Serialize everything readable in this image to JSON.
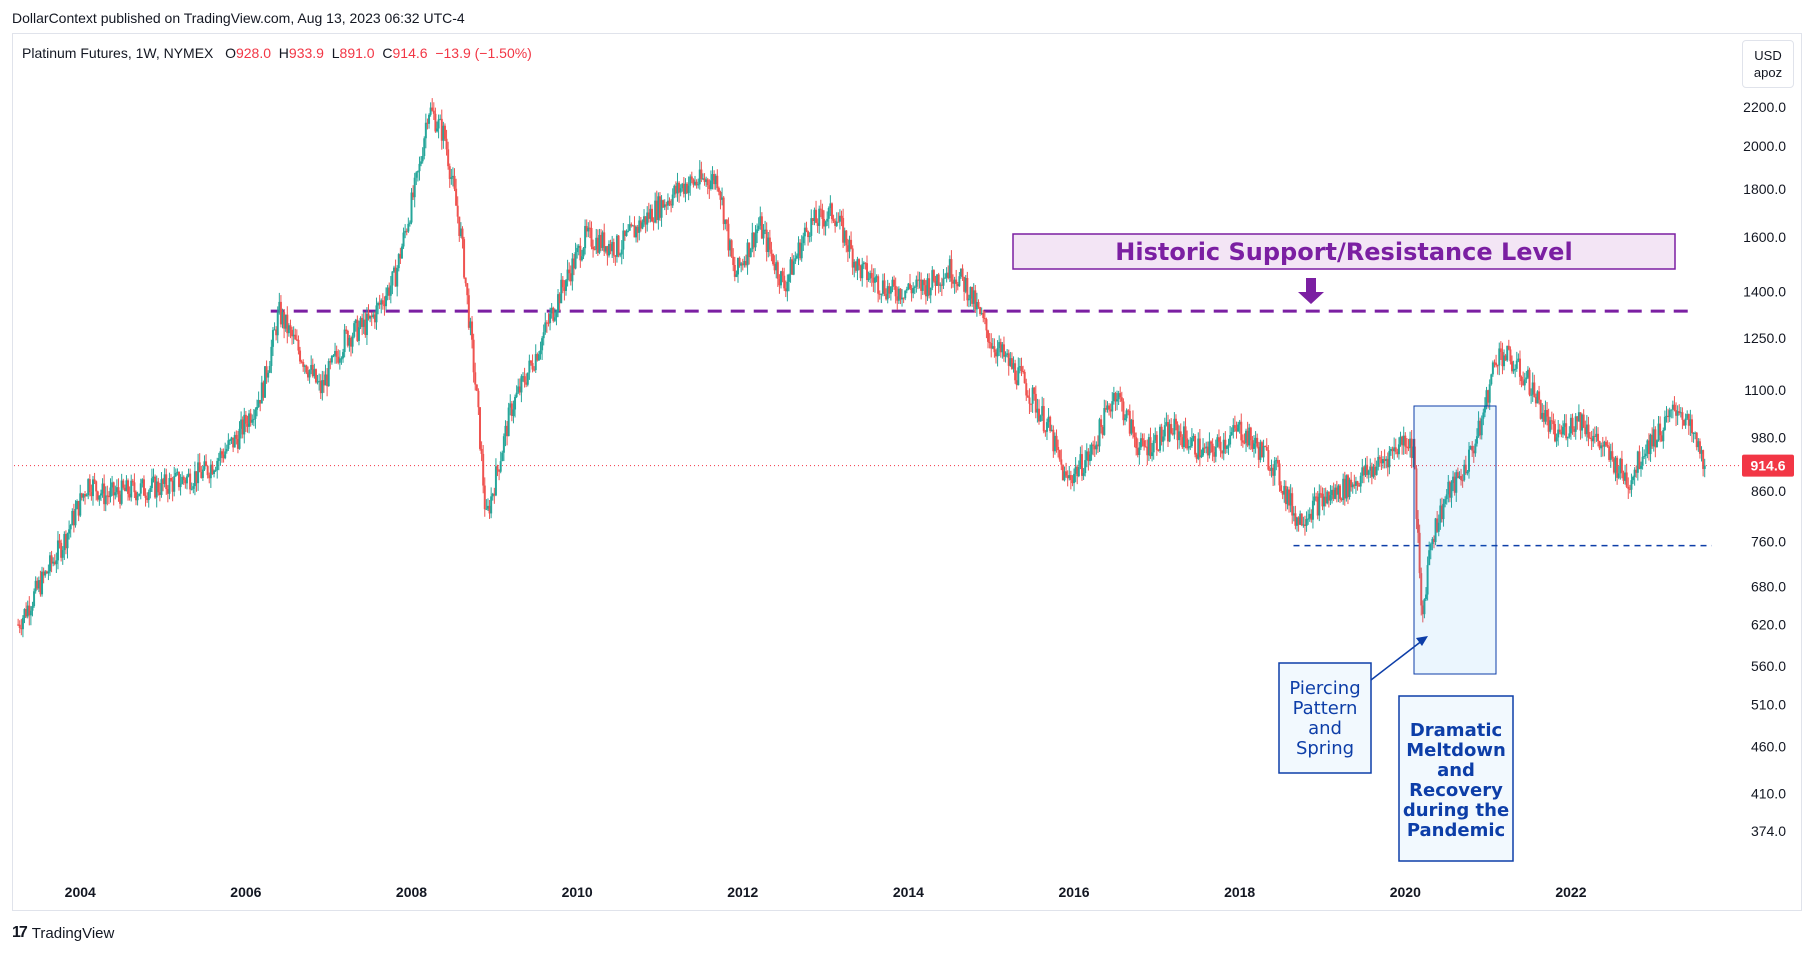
{
  "publisher": "DollarContext published on TradingView.com, Aug 13, 2023 06:32 UTC-4",
  "header": {
    "symbol": "Platinum Futures, 1W, NYMEX",
    "open_label": "O",
    "open": "928.0",
    "high_label": "H",
    "high": "933.9",
    "low_label": "L",
    "low": "891.0",
    "close_label": "C",
    "close": "914.6",
    "change": "−13.9 (−1.50%)"
  },
  "unit": {
    "currency": "USD",
    "measure": "apoz"
  },
  "footer": {
    "brand": "TradingView",
    "logo_icon": "tradingview-logo-icon"
  },
  "colors": {
    "up": "#26a69a",
    "down": "#ef5350",
    "support": "#7b1fa2",
    "annotation": "#0d3ea8",
    "price_tag": "#f23645"
  },
  "chart_data": {
    "type": "candlestick",
    "scale": "log",
    "ylim": [
      340,
      2350
    ],
    "xlim": [
      2003.2,
      2023.8
    ],
    "y_ticks": [
      "2200.0",
      "2000.0",
      "1800.0",
      "1600.0",
      "1400.0",
      "1250.0",
      "1100.0",
      "980.0",
      "860.0",
      "760.0",
      "680.0",
      "620.0",
      "560.0",
      "510.0",
      "460.0",
      "410.0",
      "374.0"
    ],
    "x_ticks": [
      "2004",
      "2006",
      "2008",
      "2010",
      "2012",
      "2014",
      "2016",
      "2018",
      "2020",
      "2022"
    ],
    "last_price": 914.6,
    "last_price_label": "914.6",
    "price_path": [
      [
        2003.25,
        620
      ],
      [
        2003.5,
        680
      ],
      [
        2003.8,
        760
      ],
      [
        2004.1,
        880
      ],
      [
        2004.3,
        850
      ],
      [
        2004.6,
        860
      ],
      [
        2005.0,
        870
      ],
      [
        2005.5,
        900
      ],
      [
        2005.9,
        980
      ],
      [
        2006.2,
        1100
      ],
      [
        2006.4,
        1330
      ],
      [
        2006.6,
        1230
      ],
      [
        2006.9,
        1100
      ],
      [
        2007.2,
        1250
      ],
      [
        2007.5,
        1300
      ],
      [
        2007.8,
        1450
      ],
      [
        2008.1,
        1900
      ],
      [
        2008.2,
        2200
      ],
      [
        2008.4,
        2050
      ],
      [
        2008.6,
        1600
      ],
      [
        2008.8,
        1050
      ],
      [
        2008.9,
        800
      ],
      [
        2009.2,
        1050
      ],
      [
        2009.5,
        1200
      ],
      [
        2009.8,
        1400
      ],
      [
        2010.1,
        1600
      ],
      [
        2010.5,
        1560
      ],
      [
        2010.9,
        1700
      ],
      [
        2011.3,
        1820
      ],
      [
        2011.7,
        1850
      ],
      [
        2011.9,
        1450
      ],
      [
        2012.2,
        1650
      ],
      [
        2012.5,
        1420
      ],
      [
        2012.8,
        1650
      ],
      [
        2013.1,
        1700
      ],
      [
        2013.4,
        1480
      ],
      [
        2013.8,
        1400
      ],
      [
        2014.2,
        1420
      ],
      [
        2014.5,
        1480
      ],
      [
        2014.7,
        1420
      ],
      [
        2015.0,
        1240
      ],
      [
        2015.4,
        1120
      ],
      [
        2015.7,
        1000
      ],
      [
        2015.9,
        880
      ],
      [
        2016.2,
        940
      ],
      [
        2016.5,
        1100
      ],
      [
        2016.8,
        950
      ],
      [
        2017.2,
        1000
      ],
      [
        2017.6,
        940
      ],
      [
        2018.0,
        1000
      ],
      [
        2018.4,
        920
      ],
      [
        2018.7,
        800
      ],
      [
        2018.9,
        830
      ],
      [
        2019.3,
        870
      ],
      [
        2019.7,
        920
      ],
      [
        2020.0,
        980
      ],
      [
        2020.1,
        950
      ],
      [
        2020.2,
        620
      ],
      [
        2020.3,
        760
      ],
      [
        2020.5,
        850
      ],
      [
        2020.7,
        900
      ],
      [
        2020.9,
        1000
      ],
      [
        2021.1,
        1200
      ],
      [
        2021.2,
        1200
      ],
      [
        2021.5,
        1120
      ],
      [
        2021.8,
        980
      ],
      [
        2022.1,
        1030
      ],
      [
        2022.4,
        950
      ],
      [
        2022.7,
        880
      ],
      [
        2022.9,
        960
      ],
      [
        2023.1,
        1000
      ],
      [
        2023.3,
        1060
      ],
      [
        2023.5,
        970
      ],
      [
        2023.62,
        914.6
      ]
    ],
    "support_resistance_level": 1335,
    "support_low_level": 752,
    "annotations": {
      "historic_level": "Historic Support/Resistance Level",
      "piercing": [
        "Piercing",
        "Pattern",
        "and",
        "Spring"
      ],
      "meltdown": [
        "Dramatic",
        "Meltdown",
        "and",
        "Recovery",
        "during the",
        "Pandemic"
      ]
    }
  }
}
